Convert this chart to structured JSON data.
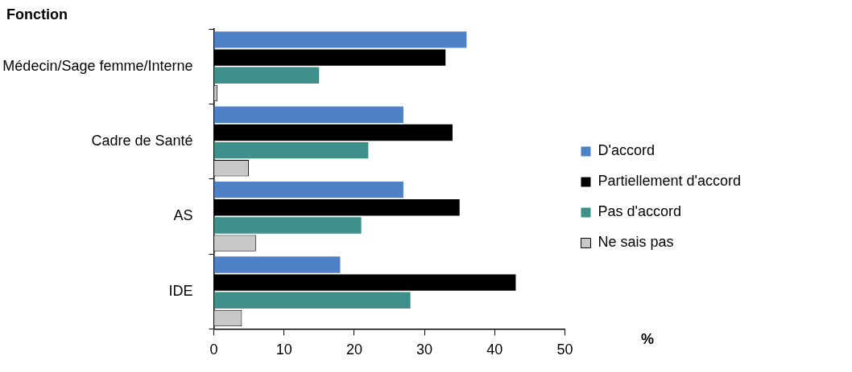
{
  "chart_data": {
    "type": "bar",
    "orientation": "horizontal",
    "ylabel": "Fonction",
    "xlabel": "%",
    "categories": [
      "Médecin/Sage femme/Interne",
      "Cadre de Santé",
      "AS",
      "IDE"
    ],
    "series": [
      {
        "name": "D'accord",
        "color": "#4f81c7",
        "values": [
          36,
          27,
          27,
          18
        ]
      },
      {
        "name": "Partiellement d'accord",
        "color": "#000000",
        "values": [
          33,
          34,
          35,
          43
        ]
      },
      {
        "name": "Pas d'accord",
        "color": "#3f8f8a",
        "values": [
          15,
          22,
          21,
          28
        ]
      },
      {
        "name": "Ne sais pas",
        "color": "#c8c8c8",
        "values": [
          0.5,
          5,
          6,
          4
        ]
      }
    ],
    "xlim": [
      0,
      50
    ],
    "xticks": [
      0,
      10,
      20,
      30,
      40,
      50
    ],
    "grid": false,
    "legend": "right"
  }
}
